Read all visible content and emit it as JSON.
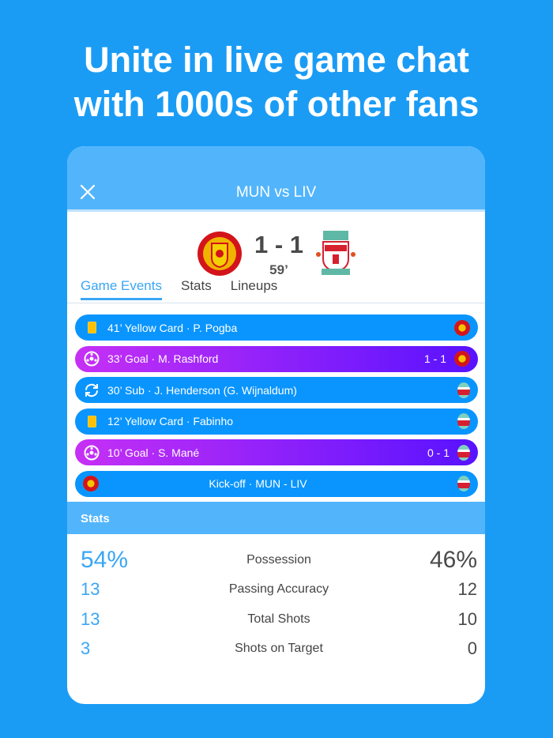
{
  "headline": [
    "Unite in live game chat",
    "with 1000s of other fans"
  ],
  "header": {
    "title": "MUN vs LIV",
    "close_icon": "close-icon"
  },
  "match": {
    "score": "1 - 1",
    "minute": "59’",
    "home_crest": "manchester-united-crest",
    "away_crest": "liverpool-crest"
  },
  "tabs": [
    {
      "label": "Game Events",
      "active": true
    },
    {
      "label": "Stats"
    },
    {
      "label": "Lineups"
    }
  ],
  "events": [
    {
      "type": "yellow-card",
      "text": "41’ Yellow Card · P. Pogba",
      "score": "",
      "team": "MUN"
    },
    {
      "type": "goal",
      "text": "33’ Goal · M. Rashford",
      "score": "1 - 1",
      "team": "MUN"
    },
    {
      "type": "sub",
      "text": "30’ Sub · J. Henderson (G. Wijnaldum)",
      "score": "",
      "team": "LIV"
    },
    {
      "type": "yellow-card",
      "text": "12’ Yellow Card · Fabinho",
      "score": "",
      "team": "LIV"
    },
    {
      "type": "goal",
      "text": "10’ Goal · S. Mané",
      "score": "0 - 1",
      "team": "LIV"
    },
    {
      "type": "kickoff",
      "text": "Kick-off · MUN - LIV",
      "score": "",
      "team": "LIV"
    }
  ],
  "stats": {
    "title": "Stats",
    "rows": [
      {
        "home": "54%",
        "label": "Possession",
        "away": "46%"
      },
      {
        "home": "13",
        "label": "Passing Accuracy",
        "away": "12"
      },
      {
        "home": "13",
        "label": "Total Shots",
        "away": "10"
      },
      {
        "home": "3",
        "label": "Shots on Target",
        "away": "0"
      }
    ]
  },
  "colors": {
    "background": "#1a9cf5",
    "header": "#52b5fc",
    "event": "#0a95fe",
    "goal_start": "#c630f5",
    "goal_end": "#5812ff",
    "accent": "#3aa6f5"
  }
}
